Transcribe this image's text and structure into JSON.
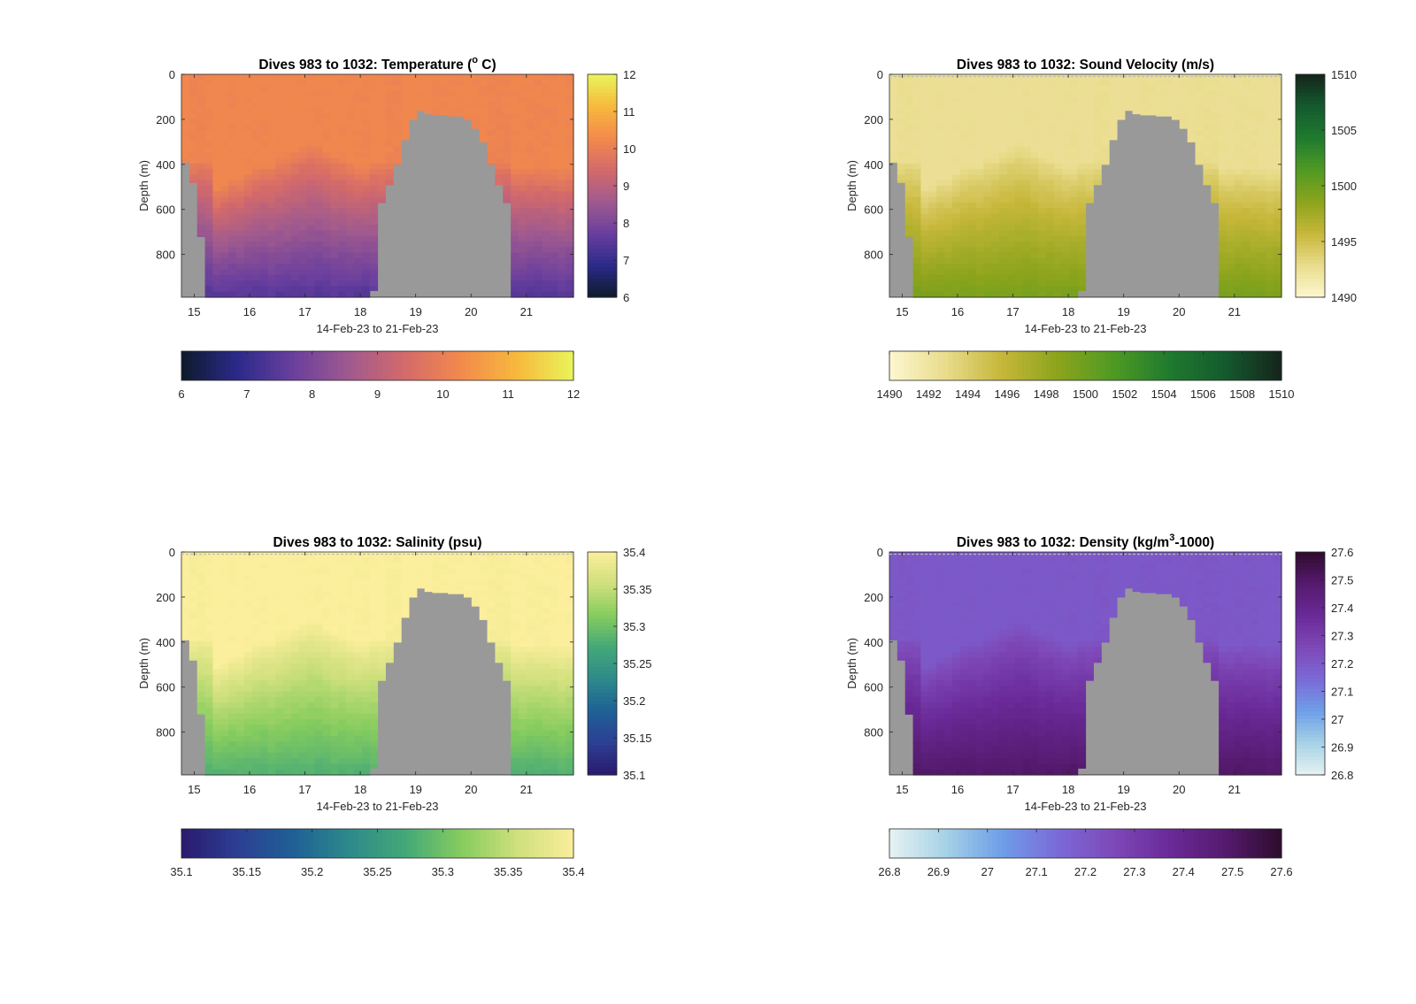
{
  "chart_data": [
    {
      "type": "heatmap",
      "id": "temp",
      "title": "Dives 983 to 1032: Temperature (",
      "title_sup": "o",
      "title_suffix": " C)",
      "xlabel": "14-Feb-23 to 21-Feb-23",
      "ylabel": "Depth (m)",
      "x_ticks": [
        "15",
        "16",
        "17",
        "18",
        "19",
        "20",
        "21"
      ],
      "y_ticks": [
        "0",
        "200",
        "400",
        "600",
        "800"
      ],
      "ylim": [
        0,
        990
      ],
      "colorbar_ticks": [
        "6",
        "7",
        "8",
        "9",
        "10",
        "11",
        "12"
      ],
      "clim": [
        6,
        12
      ],
      "colormap": [
        "#0d1a2b",
        "#2b2a8a",
        "#6a3f9e",
        "#a05a8e",
        "#d46a6a",
        "#f38a4c",
        "#f7b93c",
        "#e9f55a"
      ],
      "surface_value": 10.2,
      "deep_value": 7.4,
      "surface_color_hint": "#f58a4e",
      "profile_value_at_depth": "decreases with depth"
    },
    {
      "type": "heatmap",
      "id": "sv",
      "title": "Dives 983 to 1032: Sound Velocity (m/s)",
      "xlabel": "14-Feb-23 to 21-Feb-23",
      "ylabel": "",
      "x_ticks": [
        "15",
        "16",
        "17",
        "18",
        "19",
        "20",
        "21"
      ],
      "y_ticks": [
        "0",
        "200",
        "400",
        "600",
        "800"
      ],
      "ylim": [
        0,
        990
      ],
      "colorbar_ticks": [
        "1490",
        "1495",
        "1500",
        "1505",
        "1510"
      ],
      "colorbar_h_ticks": [
        "1490",
        "1492",
        "1494",
        "1496",
        "1498",
        "1500",
        "1502",
        "1504",
        "1506",
        "1508",
        "1510"
      ],
      "clim": [
        1490,
        1510
      ],
      "colormap": [
        "#fdf7d0",
        "#e9dc8c",
        "#c6b73a",
        "#8ca41c",
        "#4f9a24",
        "#1f7a2e",
        "#145a2e",
        "#15241a"
      ],
      "surface_value": 1492.5,
      "deep_value": 1499.5
    },
    {
      "type": "heatmap",
      "id": "sal",
      "title": "Dives 983 to 1032: Salinity (psu)",
      "xlabel": "14-Feb-23 to 21-Feb-23",
      "ylabel": "Depth (m)",
      "x_ticks": [
        "15",
        "16",
        "17",
        "18",
        "19",
        "20",
        "21"
      ],
      "y_ticks": [
        "0",
        "200",
        "400",
        "600",
        "800"
      ],
      "ylim": [
        0,
        990
      ],
      "colorbar_ticks": [
        "35.1",
        "35.15",
        "35.2",
        "35.25",
        "35.3",
        "35.35",
        "35.4"
      ],
      "clim": [
        35.1,
        35.4
      ],
      "colormap": [
        "#2a1a6e",
        "#2c3f93",
        "#1f6096",
        "#2d8a8a",
        "#43a878",
        "#86cc5e",
        "#cfe07c",
        "#fbee9c"
      ],
      "surface_value": 35.4,
      "deep_value": 35.28
    },
    {
      "type": "heatmap",
      "id": "den",
      "title": "Dives 983 to 1032: Density (kg/m",
      "title_sup": "3",
      "title_suffix": "-1000)",
      "xlabel": "14-Feb-23 to 21-Feb-23",
      "ylabel": "Depth (m)",
      "x_ticks": [
        "15",
        "16",
        "17",
        "18",
        "19",
        "20",
        "21"
      ],
      "y_ticks": [
        "0",
        "200",
        "400",
        "600",
        "800"
      ],
      "ylim": [
        0,
        990
      ],
      "colorbar_ticks": [
        "26.8",
        "26.9",
        "27",
        "27.1",
        "27.2",
        "27.3",
        "27.4",
        "27.5",
        "27.6"
      ],
      "clim": [
        26.8,
        27.6
      ],
      "colormap": [
        "#e6f2f3",
        "#a6d2e6",
        "#6e9ee8",
        "#7b6ad8",
        "#7e48b8",
        "#6a2a98",
        "#551a6e",
        "#2e0c2c"
      ],
      "surface_value": 27.2,
      "deep_value": 27.5
    }
  ]
}
